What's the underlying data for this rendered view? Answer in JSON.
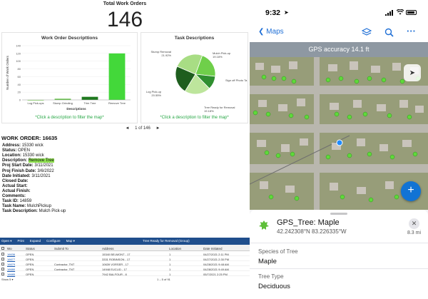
{
  "dashboard": {
    "total_title": "Total Work Orders",
    "total_value": "146",
    "wo_chart_title": "Work Order Descripttions",
    "task_chart_title": "Task Descriptions",
    "filter_hint": "*Click a description to filter the map*",
    "pager": {
      "prev": "◄",
      "label": "1 of 146",
      "next": "►"
    }
  },
  "chart_data": [
    {
      "type": "bar",
      "title": "Work Order Descripttions",
      "xlabel": "Descriptions",
      "ylabel": "Number of Work Orders",
      "categories": [
        "Log Pick-ups",
        "Stump Grinding",
        "Trim Tree",
        "Remove Tree"
      ],
      "values": [
        0,
        3,
        8,
        120
      ],
      "ylim": [
        0,
        140
      ],
      "yticks": [
        0,
        20,
        40,
        60,
        80,
        100,
        120,
        140
      ],
      "color_bars": [
        "#9be37a",
        "#5fc241",
        "#1f7a1f",
        "#43d83a"
      ]
    },
    {
      "type": "pie",
      "title": "Task Descriptions",
      "slices": [
        {
          "label": "Mulch Pick-up",
          "pct": "19.18%",
          "value": 19.18,
          "color": "#6fcf4a"
        },
        {
          "label": "Sign off Photo Ta",
          "pct": "",
          "value": 10,
          "color": "#2f8f2f"
        },
        {
          "label": "Tree Ready for Removal",
          "pct": "19.18%",
          "value": 19.18,
          "color": "#bde59c"
        },
        {
          "label": "Log Pick-up",
          "pct": "20.55%",
          "value": 20.55,
          "color": "#1e5e1e"
        },
        {
          "label": "Stump Removal",
          "pct": "21.92%",
          "value": 21.92,
          "color": "#a8dd84"
        }
      ]
    }
  ],
  "work_order": {
    "heading": "WORK ORDER: 16635",
    "fields": [
      {
        "label": "Address:",
        "value": "15330 wick"
      },
      {
        "label": "Status:",
        "value": "OPEN"
      },
      {
        "label": "Location:",
        "value": "15330 wick"
      },
      {
        "label": "Description:",
        "value": "Remove Tree",
        "highlight": true
      },
      {
        "label": "Proj Start Date:",
        "value": "3/11/2021"
      },
      {
        "label": "Proj Finish Date:",
        "value": "3/6/2022"
      },
      {
        "label": "Date Initiated:",
        "value": "3/11/2021"
      },
      {
        "label": "Closed Date:",
        "value": ""
      },
      {
        "label": "Actual Start:",
        "value": ""
      },
      {
        "label": "Actual Finish:",
        "value": ""
      },
      {
        "label": "Comments:",
        "value": ""
      },
      {
        "label": "Task ID:",
        "value": "14859"
      },
      {
        "label": "Task Name:",
        "value": "MulchPickup"
      },
      {
        "label": "Task Description:",
        "value": "Mulch Pick-up"
      }
    ]
  },
  "table": {
    "title": "Tree Ready for Removal (Group)",
    "menu": [
      "Open ▾",
      "Print",
      "Expand",
      "Configure",
      "Map ▾"
    ],
    "headers": [
      "",
      "Wo",
      "Status",
      "Submit To",
      "Address",
      "Location",
      "Date Initiated"
    ],
    "rows": [
      [
        "16636",
        "OPEN",
        "",
        "15340 BELMONT - 17",
        "1",
        "04/27/2021 2:11 PM"
      ],
      [
        "16677",
        "OPEN",
        "",
        "3331 ROBINSON - 17",
        "1",
        "04/27/2021 2:30 PM"
      ],
      [
        "16679",
        "OPEN",
        "Contractor, TNT",
        "10639 VORSER - 17",
        "1",
        "04/28/2021 9:48 AM"
      ],
      [
        "16680",
        "OPEN",
        "Contractor, TNT",
        "14948 EUCLID - 17",
        "1",
        "04/28/2021 9:49 AM"
      ],
      [
        "16685",
        "OPEN",
        "",
        "7942 BALFOUR - 8",
        "1",
        "05/7/2021 2:25 PM"
      ]
    ],
    "footer_left": "Show 5 ▾",
    "footer_right": "1 – 5 of 91"
  },
  "phone": {
    "time": "9:32",
    "back_label": "Maps",
    "gps_accuracy": "GPS accuracy 14.1 ft",
    "feature_title": "GPS_Tree: Maple",
    "coords": "42.242308°N 83.226335°W",
    "distance": "8.3 mi",
    "fields": [
      {
        "label": "Species of Tree",
        "value": "Maple"
      },
      {
        "label": "Tree Type",
        "value": "Deciduous"
      }
    ],
    "icons": [
      "chevron-left-icon",
      "layers-icon",
      "search-icon",
      "more-icon",
      "locate-icon",
      "plus-icon",
      "close-icon",
      "tree-icon"
    ]
  }
}
